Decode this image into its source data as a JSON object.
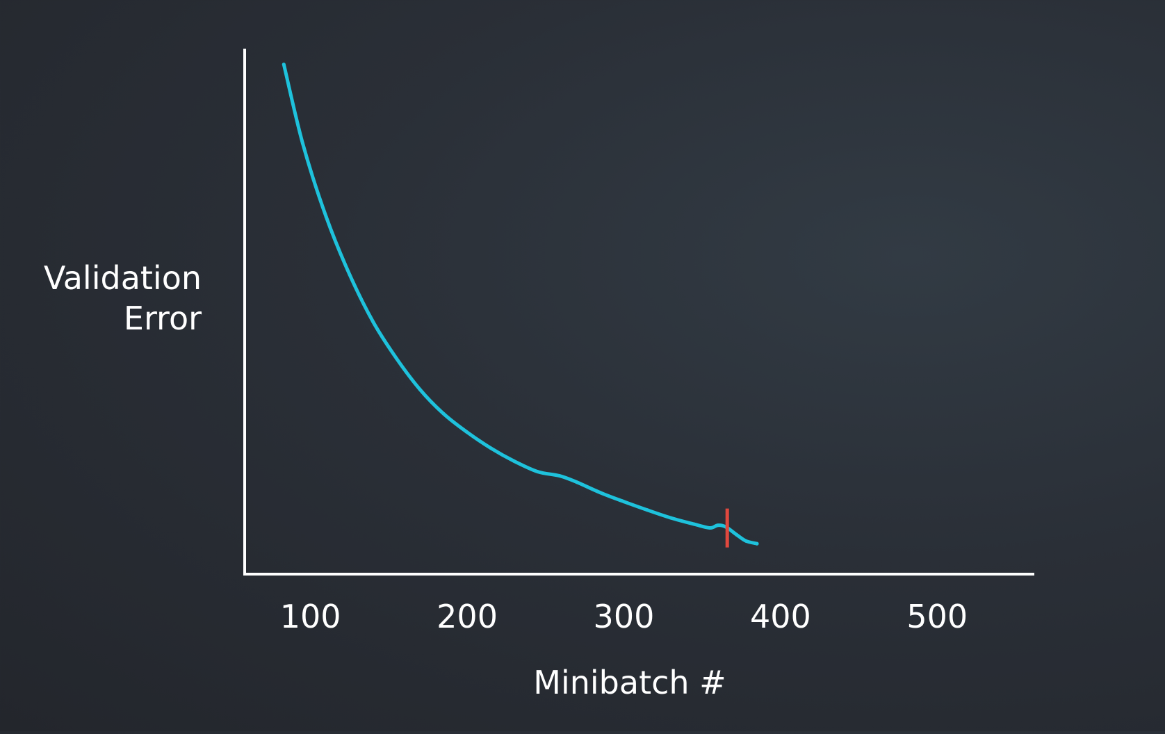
{
  "chart_data": {
    "type": "line",
    "title": "",
    "xlabel": "Minibatch #",
    "ylabel": [
      "Validation",
      "Error"
    ],
    "xlim": [
      58,
      562
    ],
    "ylim": [
      0,
      1
    ],
    "x_ticks": [
      100,
      200,
      300,
      400,
      500
    ],
    "grid": false,
    "legend": "none",
    "series": [
      {
        "color": "#1ec2dc",
        "x": [
          83,
          95,
          110,
          125,
          140,
          155,
          170,
          185,
          200,
          215,
          230,
          245,
          259,
          270,
          285,
          300,
          315,
          330,
          345,
          355,
          360,
          365,
          372,
          378,
          385
        ],
        "y": [
          0.97,
          0.82,
          0.68,
          0.57,
          0.48,
          0.41,
          0.351,
          0.305,
          0.27,
          0.24,
          0.215,
          0.195,
          0.187,
          0.175,
          0.155,
          0.138,
          0.122,
          0.107,
          0.095,
          0.088,
          0.093,
          0.09,
          0.075,
          0.063,
          0.058
        ]
      }
    ],
    "annotations": [
      {
        "type": "vertical-marker",
        "x": 366,
        "color": "#e0483e"
      }
    ]
  },
  "colors": {
    "axis": "#ffffff",
    "line": "#1ec2dc",
    "marker": "#e0483e"
  }
}
